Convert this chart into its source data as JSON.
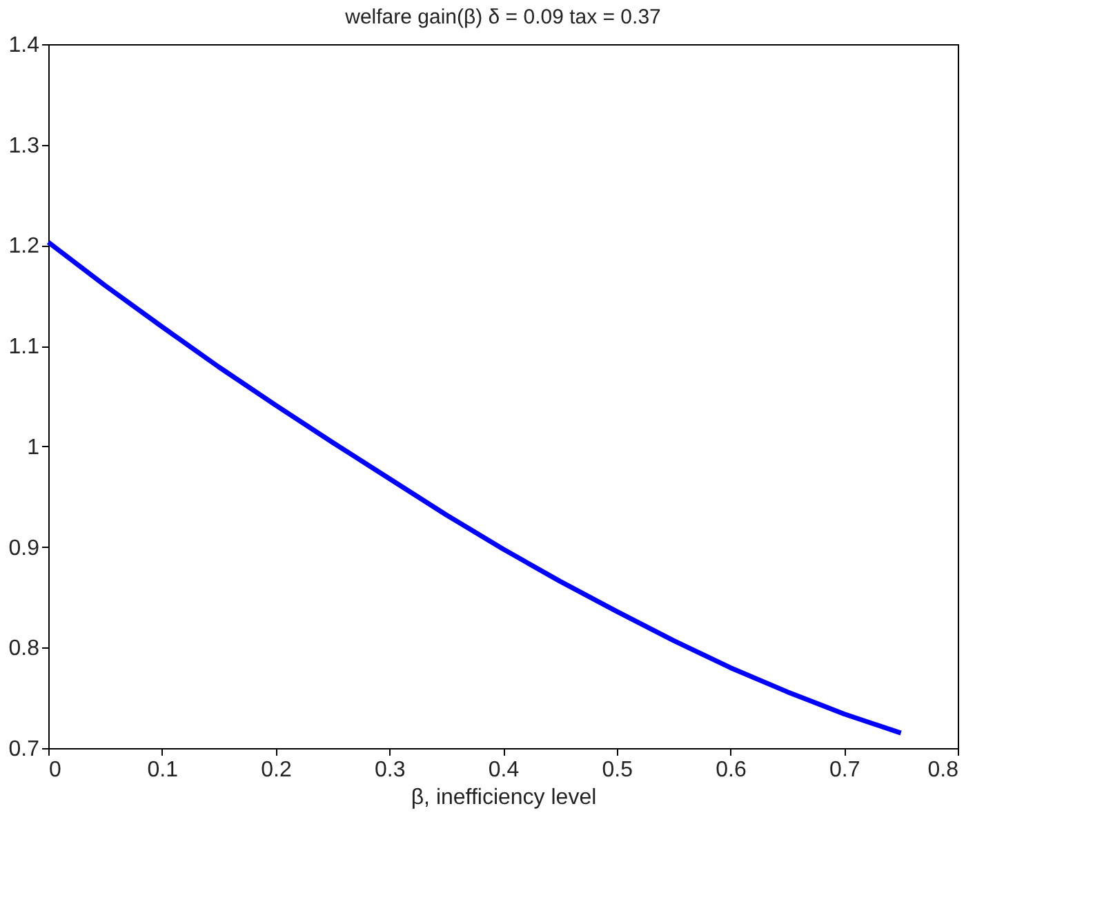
{
  "chart_data": {
    "type": "line",
    "title": "welfare gain(β)    δ = 0.09 tax = 0.37",
    "xlabel": "β, inefficiency level",
    "x": [
      0,
      0.05,
      0.1,
      0.15,
      0.2,
      0.25,
      0.3,
      0.35,
      0.4,
      0.45,
      0.5,
      0.55,
      0.6,
      0.65,
      0.7,
      0.75
    ],
    "series": [
      {
        "color": "#0000ff",
        "values": [
          1.203,
          1.16,
          1.119,
          1.079,
          1.041,
          1.004,
          0.968,
          0.932,
          0.898,
          0.866,
          0.836,
          0.807,
          0.78,
          0.756,
          0.734,
          0.715
        ]
      }
    ],
    "xlim": [
      0,
      0.8
    ],
    "xticks": [
      0,
      0.1,
      0.2,
      0.3,
      0.4,
      0.5,
      0.6,
      0.7,
      0.8
    ],
    "ylim": [
      0.7,
      1.4
    ],
    "yticks": [
      0.7,
      0.8,
      0.9,
      1,
      1.1,
      1.2,
      1.3,
      1.4
    ],
    "grid": false,
    "legend": false,
    "marker": "none",
    "line_style": "solid"
  }
}
